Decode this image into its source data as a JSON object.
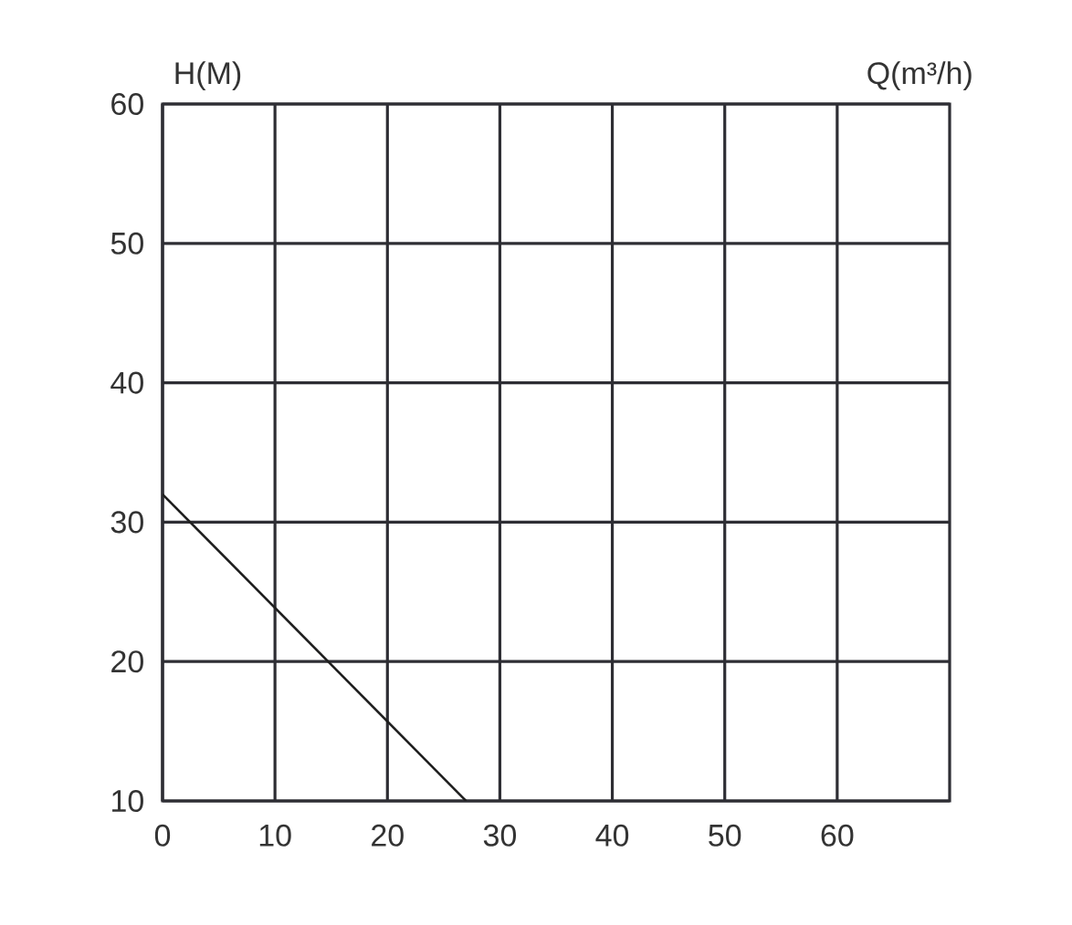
{
  "chart_data": {
    "type": "line",
    "xlabel": "Q(m³/h)",
    "ylabel": "H(M)",
    "x": [
      0,
      27
    ],
    "series": [
      {
        "color": "#1e1e1e",
        "values": [
          32,
          10
        ]
      }
    ],
    "xlim": [
      0,
      70
    ],
    "xticks": [
      0,
      10,
      20,
      30,
      40,
      50,
      60
    ],
    "ylim": [
      10,
      60
    ],
    "yticks": [
      10,
      20,
      30,
      40,
      50,
      60
    ],
    "grid": true,
    "marker": "none",
    "line_style": "solid"
  }
}
